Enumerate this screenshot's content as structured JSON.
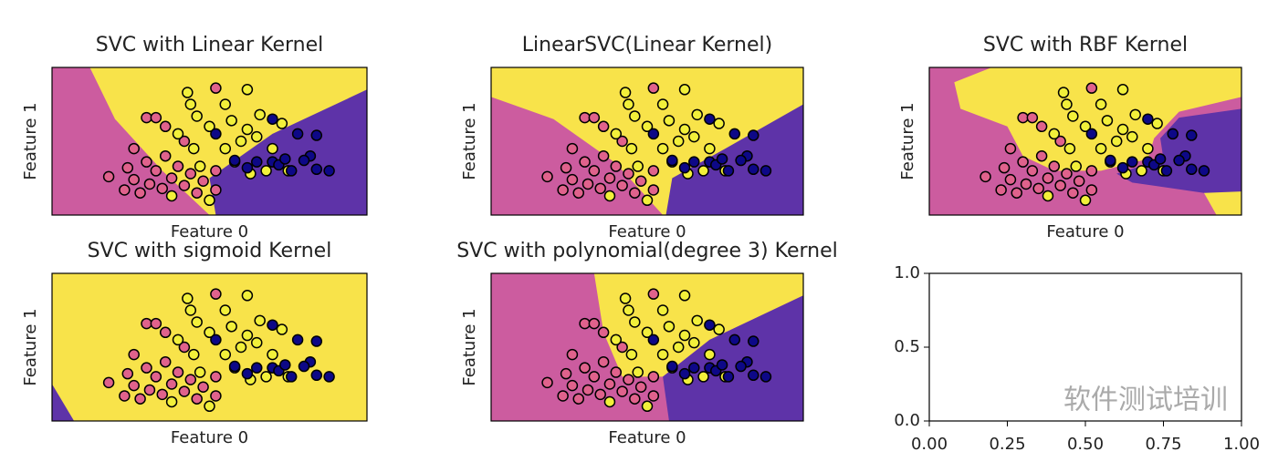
{
  "chart_data": [
    {
      "type": "scatter",
      "title": "SVC with Linear Kernel",
      "xlabel": "Feature 0",
      "ylabel": "Feature 1",
      "series": [
        {
          "color": "#e0628c",
          "x": [
            18,
            23,
            24,
            26,
            28,
            30,
            31,
            33,
            35,
            36,
            38,
            40,
            42,
            44,
            46,
            48,
            30,
            33,
            36,
            52,
            26,
            42,
            52,
            52
          ],
          "y": [
            74,
            83,
            68,
            76,
            85,
            64,
            79,
            70,
            82,
            60,
            75,
            67,
            80,
            72,
            85,
            77,
            34,
            34,
            40,
            83,
            55,
            50,
            70,
            14
          ]
        },
        {
          "color": "#f2f03a",
          "x": [
            43,
            62,
            55,
            46,
            50,
            57,
            62,
            66,
            40,
            45,
            55,
            60,
            65,
            70,
            47,
            58,
            68,
            75,
            38,
            50,
            73,
            63,
            44
          ],
          "y": [
            17,
            15,
            25,
            33,
            40,
            36,
            42,
            32,
            45,
            55,
            55,
            50,
            47,
            55,
            67,
            64,
            70,
            70,
            87,
            90,
            38,
            72,
            25
          ]
        },
        {
          "color": "#0d0887",
          "x": [
            52,
            58,
            62,
            65,
            70,
            72,
            74,
            76,
            78,
            82,
            84,
            80,
            84,
            88,
            70
          ],
          "y": [
            45,
            63,
            68,
            64,
            64,
            66,
            62,
            70,
            45,
            60,
            46,
            63,
            69,
            70,
            35
          ]
        }
      ]
    },
    {
      "type": "scatter",
      "title": "LinearSVC(Linear Kernel)",
      "xlabel": "Feature 0",
      "ylabel": "Feature 1",
      "series": [
        {
          "color": "#e0628c",
          "x": [
            18,
            23,
            24,
            26,
            28,
            30,
            31,
            33,
            35,
            36,
            38,
            40,
            42,
            44,
            46,
            48,
            30,
            33,
            36,
            52,
            26,
            42,
            52,
            52
          ],
          "y": [
            74,
            83,
            68,
            76,
            85,
            64,
            79,
            70,
            82,
            60,
            75,
            67,
            80,
            72,
            85,
            77,
            34,
            34,
            40,
            83,
            55,
            50,
            70,
            14
          ]
        },
        {
          "color": "#f2f03a",
          "x": [
            43,
            62,
            55,
            46,
            50,
            57,
            62,
            66,
            40,
            45,
            55,
            60,
            65,
            70,
            47,
            58,
            68,
            75,
            38,
            50,
            73,
            63,
            44
          ],
          "y": [
            17,
            15,
            25,
            33,
            40,
            36,
            42,
            32,
            45,
            55,
            55,
            50,
            47,
            55,
            67,
            64,
            70,
            70,
            87,
            90,
            38,
            72,
            25
          ]
        },
        {
          "color": "#0d0887",
          "x": [
            52,
            58,
            62,
            65,
            70,
            72,
            74,
            76,
            78,
            82,
            84,
            80,
            84,
            88,
            70
          ],
          "y": [
            45,
            63,
            68,
            64,
            64,
            66,
            62,
            70,
            45,
            60,
            46,
            63,
            69,
            70,
            35
          ]
        }
      ]
    },
    {
      "type": "scatter",
      "title": "SVC with RBF Kernel",
      "xlabel": "Feature 0",
      "ylabel": "Feature 1",
      "series": [
        {
          "color": "#e0628c",
          "x": [
            18,
            23,
            24,
            26,
            28,
            30,
            31,
            33,
            35,
            36,
            38,
            40,
            42,
            44,
            46,
            48,
            30,
            33,
            36,
            52,
            26,
            42,
            52,
            52
          ],
          "y": [
            74,
            83,
            68,
            76,
            85,
            64,
            79,
            70,
            82,
            60,
            75,
            67,
            80,
            72,
            85,
            77,
            34,
            34,
            40,
            83,
            55,
            50,
            70,
            14
          ]
        },
        {
          "color": "#f2f03a",
          "x": [
            43,
            62,
            55,
            46,
            50,
            57,
            62,
            66,
            40,
            45,
            55,
            60,
            65,
            70,
            47,
            58,
            68,
            75,
            38,
            50,
            73,
            63,
            44
          ],
          "y": [
            17,
            15,
            25,
            33,
            40,
            36,
            42,
            32,
            45,
            55,
            55,
            50,
            47,
            55,
            67,
            64,
            70,
            70,
            87,
            90,
            38,
            72,
            25
          ]
        },
        {
          "color": "#0d0887",
          "x": [
            52,
            58,
            62,
            65,
            70,
            72,
            74,
            76,
            78,
            82,
            84,
            80,
            84,
            88,
            70
          ],
          "y": [
            45,
            63,
            68,
            64,
            64,
            66,
            62,
            70,
            45,
            60,
            46,
            63,
            69,
            70,
            35
          ]
        }
      ]
    },
    {
      "type": "scatter",
      "title": "SVC with sigmoid Kernel",
      "xlabel": "Feature 0",
      "ylabel": "Feature 1",
      "series": [
        {
          "color": "#e0628c",
          "x": [
            18,
            23,
            24,
            26,
            28,
            30,
            31,
            33,
            35,
            36,
            38,
            40,
            42,
            44,
            46,
            48,
            30,
            33,
            36,
            52,
            26,
            42,
            52,
            52
          ],
          "y": [
            74,
            83,
            68,
            76,
            85,
            64,
            79,
            70,
            82,
            60,
            75,
            67,
            80,
            72,
            85,
            77,
            34,
            34,
            40,
            83,
            55,
            50,
            70,
            14
          ]
        },
        {
          "color": "#f2f03a",
          "x": [
            43,
            62,
            55,
            46,
            50,
            57,
            62,
            66,
            40,
            45,
            55,
            60,
            65,
            70,
            47,
            58,
            68,
            75,
            38,
            50,
            73,
            63,
            44
          ],
          "y": [
            17,
            15,
            25,
            33,
            40,
            36,
            42,
            32,
            45,
            55,
            55,
            50,
            47,
            55,
            67,
            64,
            70,
            70,
            87,
            90,
            38,
            72,
            25
          ]
        },
        {
          "color": "#0d0887",
          "x": [
            52,
            58,
            62,
            65,
            70,
            72,
            74,
            76,
            78,
            82,
            84,
            80,
            84,
            88,
            70
          ],
          "y": [
            45,
            63,
            68,
            64,
            64,
            66,
            62,
            70,
            45,
            60,
            46,
            63,
            69,
            70,
            35
          ]
        }
      ]
    },
    {
      "type": "scatter",
      "title": "SVC with polynomial(degree 3) Kernel",
      "xlabel": "Feature 0",
      "ylabel": "Feature 1",
      "series": [
        {
          "color": "#e0628c",
          "x": [
            18,
            23,
            24,
            26,
            28,
            30,
            31,
            33,
            35,
            36,
            38,
            40,
            42,
            44,
            46,
            48,
            30,
            33,
            36,
            52,
            26,
            42,
            52,
            52
          ],
          "y": [
            74,
            83,
            68,
            76,
            85,
            64,
            79,
            70,
            82,
            60,
            75,
            67,
            80,
            72,
            85,
            77,
            34,
            34,
            40,
            83,
            55,
            50,
            70,
            14
          ]
        },
        {
          "color": "#f2f03a",
          "x": [
            43,
            62,
            55,
            46,
            50,
            57,
            62,
            66,
            40,
            45,
            55,
            60,
            65,
            70,
            47,
            58,
            68,
            75,
            38,
            50,
            73,
            63,
            44
          ],
          "y": [
            17,
            15,
            25,
            33,
            40,
            36,
            42,
            32,
            45,
            55,
            55,
            50,
            47,
            55,
            67,
            64,
            70,
            70,
            87,
            90,
            38,
            72,
            25
          ]
        },
        {
          "color": "#0d0887",
          "x": [
            52,
            58,
            62,
            65,
            70,
            72,
            74,
            76,
            78,
            82,
            84,
            80,
            84,
            88,
            70
          ],
          "y": [
            45,
            63,
            68,
            64,
            64,
            66,
            62,
            70,
            45,
            60,
            46,
            63,
            69,
            70,
            35
          ]
        }
      ]
    },
    {
      "type": "empty",
      "xlim": [
        0,
        1
      ],
      "ylim": [
        0,
        1
      ],
      "xticks": [
        {
          "value": 0,
          "label": "0.00"
        },
        0.25,
        {
          "value": 0.5,
          "label": "0.50"
        },
        0.75,
        {
          "value": 1,
          "label": "1.00"
        }
      ],
      "yticks": [
        {
          "value": 0,
          "label": "0.0"
        },
        0.5,
        {
          "value": 1,
          "label": "1.0"
        }
      ]
    }
  ],
  "watermark": "软件测试培训"
}
